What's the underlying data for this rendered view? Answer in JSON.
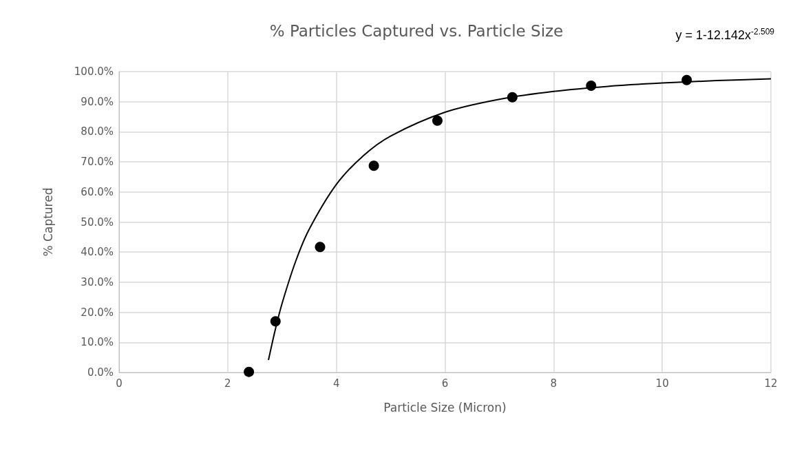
{
  "chart_data": {
    "type": "scatter",
    "title": "% Particles Captured vs. Particle Size",
    "xlabel": "Particle Size (Micron)",
    "ylabel": "% Captured",
    "annotations": [
      "y = 1-12.142x$^{-2.509}$"
    ],
    "series": [
      {
        "color": "#000000",
        "marker": "circle",
        "x": [
          2.39,
          2.88,
          3.7,
          4.69,
          5.86,
          7.24,
          8.69,
          10.45
        ],
        "values": [
          0.2,
          17.0,
          41.7,
          68.7,
          83.7,
          91.5,
          95.3,
          97.2
        ]
      },
      {
        "type": "line",
        "color": "#000000",
        "marker": "none",
        "x": [
          2.75,
          2.875,
          3,
          3.25,
          3.5,
          4,
          4.5,
          5,
          6,
          7,
          8,
          9,
          10,
          11,
          12
        ],
        "values": [
          4.1,
          14.2,
          22.9,
          36.9,
          47.6,
          62.5,
          72.1,
          78.6,
          86.5,
          90.8,
          93.4,
          95.1,
          96.2,
          97.0,
          97.6
        ]
      }
    ],
    "xlim": [
      0,
      12
    ],
    "xticks": [
      0,
      2,
      4,
      6,
      8,
      10,
      12
    ],
    "ylim": [
      0,
      100
    ],
    "yticks": [
      {
        "value": 0,
        "label": "0.0%"
      },
      {
        "value": 10,
        "label": "10.0%"
      },
      {
        "value": 20,
        "label": "20.0%"
      },
      {
        "value": 30,
        "label": "30.0%"
      },
      {
        "value": 40,
        "label": "40.0%"
      },
      {
        "value": 50,
        "label": "50.0%"
      },
      {
        "value": 60,
        "label": "60.0%"
      },
      {
        "value": 70,
        "label": "70.0%"
      },
      {
        "value": 80,
        "label": "80.0%"
      },
      {
        "value": 90,
        "label": "90.0%"
      },
      {
        "value": 100,
        "label": "100.0%"
      }
    ],
    "grid": true
  }
}
